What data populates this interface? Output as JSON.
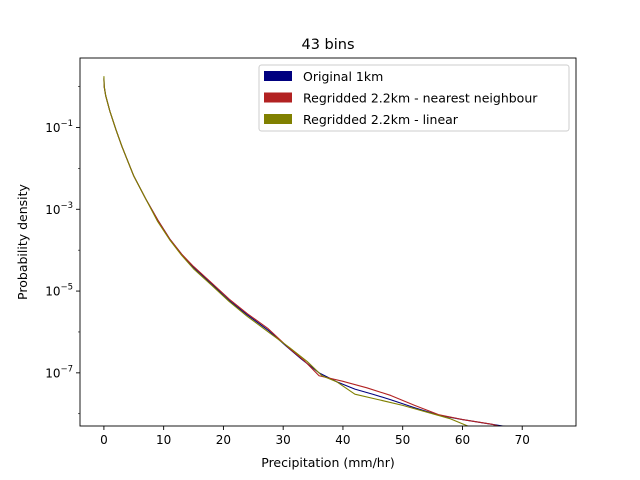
{
  "chart_data": {
    "type": "line",
    "title": "43 bins",
    "xlabel": "Precipitation (mm/hr)",
    "ylabel": "Probability density",
    "xlim": [
      -4,
      79
    ],
    "ylim_log10": [
      -8.3,
      0.7
    ],
    "yscale": "log",
    "xticks": [
      0,
      10,
      20,
      30,
      40,
      50,
      60,
      70
    ],
    "yticks": [
      {
        "exp": -7,
        "base": "10",
        "sup": "−7"
      },
      {
        "exp": -5,
        "base": "10",
        "sup": "−5"
      },
      {
        "exp": -3,
        "base": "10",
        "sup": "−3"
      },
      {
        "exp": -1,
        "base": "10",
        "sup": "−1"
      }
    ],
    "grid": false,
    "legend_position": "top-right",
    "series": [
      {
        "name": "Original 1km",
        "color": "#00007f",
        "points": [
          [
            0,
            1.6
          ],
          [
            0.05,
            1.0
          ],
          [
            0.3,
            0.6
          ],
          [
            1,
            0.25
          ],
          [
            2,
            0.09
          ],
          [
            3,
            0.035
          ],
          [
            4,
            0.015
          ],
          [
            5,
            0.0065
          ],
          [
            7,
            0.0018
          ],
          [
            9,
            0.00055
          ],
          [
            11,
            0.00019
          ],
          [
            13,
            8e-05
          ],
          [
            15,
            3.8e-05
          ],
          [
            18,
            1.5e-05
          ],
          [
            21,
            5.8e-06
          ],
          [
            24,
            2.6e-06
          ],
          [
            27.5,
            1.1e-06
          ],
          [
            30.5,
            4.5e-07
          ],
          [
            33,
            2.2e-07
          ],
          [
            36,
            1e-07
          ],
          [
            39,
            6e-08
          ],
          [
            42,
            4e-08
          ],
          [
            45,
            3e-08
          ],
          [
            48,
            2.2e-08
          ],
          [
            52,
            1.4e-08
          ],
          [
            56,
            9.2e-09
          ],
          [
            60,
            7.2e-09
          ],
          [
            64,
            5.8e-09
          ],
          [
            70,
            4.2e-09
          ],
          [
            75,
            3.2e-09
          ]
        ]
      },
      {
        "name": "Regridded 2.2km - nearest neighbour",
        "color": "#b22222",
        "points": [
          [
            0,
            1.5
          ],
          [
            0.05,
            1.0
          ],
          [
            0.3,
            0.6
          ],
          [
            1,
            0.25
          ],
          [
            2,
            0.09
          ],
          [
            3,
            0.035
          ],
          [
            4,
            0.015
          ],
          [
            5,
            0.0065
          ],
          [
            7,
            0.0018
          ],
          [
            9,
            0.00055
          ],
          [
            11,
            0.00019
          ],
          [
            13,
            8e-05
          ],
          [
            15,
            4e-05
          ],
          [
            18,
            1.6e-05
          ],
          [
            21,
            6.3e-06
          ],
          [
            24,
            2.8e-06
          ],
          [
            27.5,
            1.2e-06
          ],
          [
            31,
            4e-07
          ],
          [
            33.5,
            2e-07
          ],
          [
            36,
            8.5e-08
          ],
          [
            40,
            6.2e-08
          ],
          [
            44,
            4.3e-08
          ],
          [
            48,
            2.8e-08
          ],
          [
            52,
            1.6e-08
          ],
          [
            56,
            9.5e-09
          ],
          [
            60,
            7.2e-09
          ],
          [
            65,
            5.5e-09
          ],
          [
            70,
            3.5e-09
          ],
          [
            75,
            2e-09
          ]
        ]
      },
      {
        "name": "Regridded 2.2km - linear",
        "color": "#808000",
        "points": [
          [
            0,
            1.8
          ],
          [
            0.05,
            1.0
          ],
          [
            0.3,
            0.6
          ],
          [
            1,
            0.25
          ],
          [
            2,
            0.09
          ],
          [
            3,
            0.035
          ],
          [
            4,
            0.015
          ],
          [
            5,
            0.0065
          ],
          [
            7,
            0.0018
          ],
          [
            9,
            0.0005
          ],
          [
            11,
            0.00018
          ],
          [
            13,
            7.5e-05
          ],
          [
            15,
            3.5e-05
          ],
          [
            18,
            1.4e-05
          ],
          [
            21,
            5.5e-06
          ],
          [
            24,
            2.4e-06
          ],
          [
            27.5,
            1e-06
          ],
          [
            31,
            4.2e-07
          ],
          [
            34,
            1.9e-07
          ],
          [
            36.5,
            8.5e-08
          ],
          [
            39,
            6e-08
          ],
          [
            42,
            3e-08
          ],
          [
            46,
            2.2e-08
          ],
          [
            50,
            1.6e-08
          ],
          [
            54,
            1.1e-08
          ],
          [
            58,
            7.5e-09
          ],
          [
            61.5,
            4.6e-09
          ],
          [
            65,
            2.8e-09
          ],
          [
            70,
            2.4e-09
          ],
          [
            75,
            2e-09
          ]
        ]
      }
    ]
  }
}
